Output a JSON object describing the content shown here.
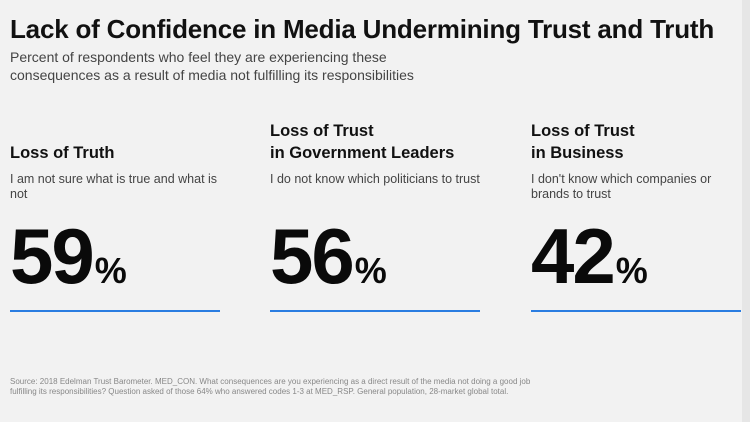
{
  "title": "Lack of Confidence in Media Undermining Trust and Truth",
  "subtitle": "Percent of respondents who feel they are experiencing these consequences as a result of media not fulfilling its responsibilities",
  "stats": [
    {
      "heading_line1": "Loss of Truth",
      "heading_line2": "",
      "description": "I am not sure what is true and what is not",
      "value": "59",
      "unit": "%",
      "accent": "#2a7de1"
    },
    {
      "heading_line1": "Loss of Trust",
      "heading_line2": "in Government Leaders",
      "description": "I do not know which politicians to trust",
      "value": "56",
      "unit": "%",
      "accent": "#2a7de1"
    },
    {
      "heading_line1": "Loss of Trust",
      "heading_line2": "in Business",
      "description": "I don't know which companies or brands to trust",
      "value": "42",
      "unit": "%",
      "accent": "#2a7de1"
    }
  ],
  "source": "Source: 2018 Edelman Trust Barometer. MED_CON. What consequences are you experiencing as a direct result of the media not doing a good job fulfilling its responsibilities? Question asked of those 64% who answered codes 1-3 at MED_RSP. General population, 28-market global total."
}
